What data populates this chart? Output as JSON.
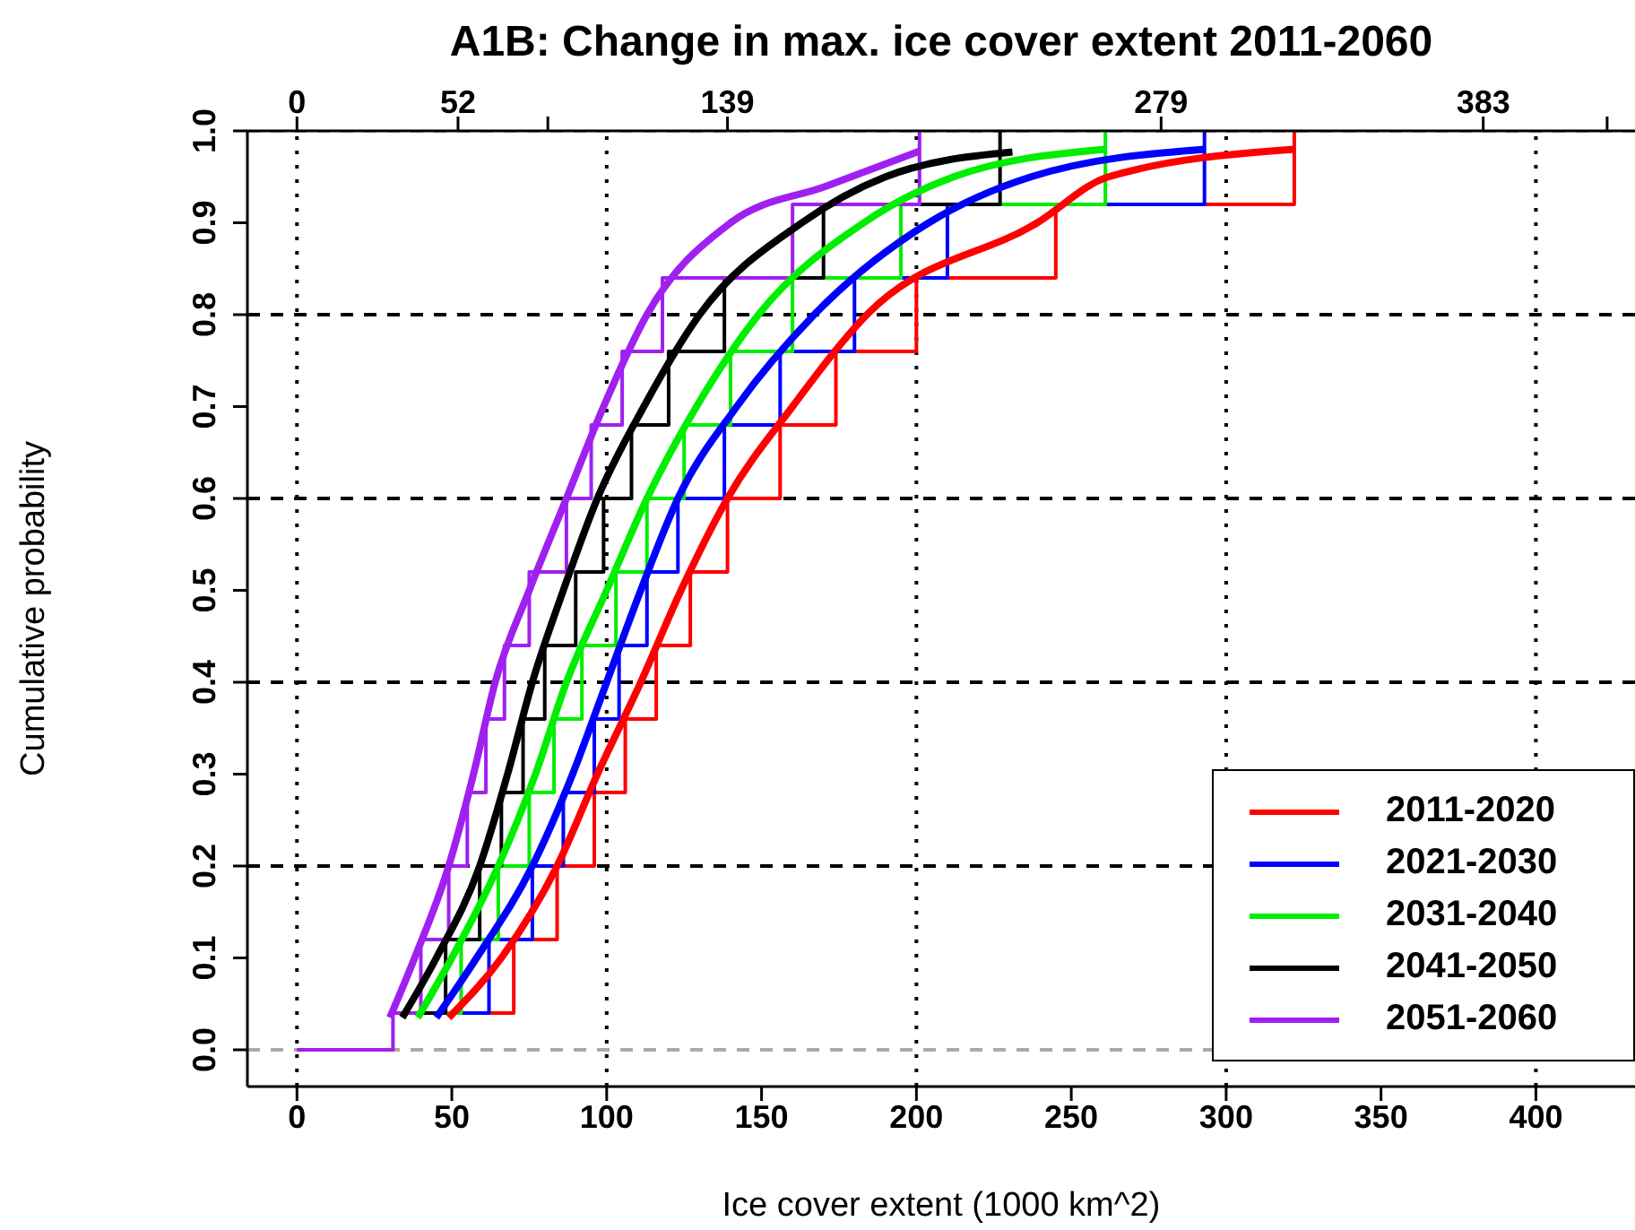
{
  "chart_data": {
    "type": "line",
    "title": "A1B: Change in max. ice cover extent 2011-2060",
    "xlabel": "Ice cover extent (1000 km^2)",
    "ylabel": "Cumulative probability",
    "xlim": [
      -16,
      432
    ],
    "xticks": [
      0,
      50,
      100,
      150,
      200,
      250,
      300,
      350,
      400
    ],
    "x2lim": [
      -16,
      432
    ],
    "x2ticks": [
      0,
      52,
      {
        "value": 81,
        "label": null
      },
      139,
      279,
      383,
      {
        "value": 423,
        "label": null
      }
    ],
    "ylim": [
      -0.04,
      1.0
    ],
    "yticks": [
      {
        "value": 0,
        "label": "0.0"
      },
      0.1,
      0.2,
      0.3,
      0.4,
      0.5,
      0.6,
      0.7,
      0.8,
      0.9,
      {
        "value": 1,
        "label": "1.0"
      }
    ],
    "legend": "bottom right",
    "ref_lines": [
      {
        "axis": "x",
        "value": 0,
        "line_style": "dotted",
        "color": "#000000"
      },
      {
        "axis": "x",
        "value": 100,
        "line_style": "dotted",
        "color": "#000000"
      },
      {
        "axis": "x",
        "value": 200,
        "line_style": "dotted",
        "color": "#000000"
      },
      {
        "axis": "x",
        "value": 300,
        "line_style": "dotted",
        "color": "#000000"
      },
      {
        "axis": "x",
        "value": 400,
        "line_style": "dotted",
        "color": "#000000"
      },
      {
        "axis": "y",
        "value": 0.2,
        "line_style": "dashed",
        "color": "#000000"
      },
      {
        "axis": "y",
        "value": 0.4,
        "line_style": "dashed",
        "color": "#000000"
      },
      {
        "axis": "y",
        "value": 0.6,
        "line_style": "dashed",
        "color": "#000000"
      },
      {
        "axis": "y",
        "value": 0.8,
        "line_style": "dashed",
        "color": "#000000"
      },
      {
        "axis": "y",
        "value": 0,
        "line_style": "dashed",
        "color": "#aaaaaa"
      },
      {
        "axis": "y",
        "value": 1,
        "line_style": "dashed",
        "color": "#aaaaaa"
      }
    ],
    "series": [
      {
        "type": "step",
        "color": "#ff0000",
        "x": [
          52,
          70,
          84,
          96,
          106,
          116,
          127,
          139,
          156,
          174,
          200,
          245,
          322
        ],
        "values": [
          0.04,
          0.12,
          0.2,
          0.28,
          0.36,
          0.44,
          0.52,
          0.6,
          0.68,
          0.76,
          0.84,
          0.92,
          1.0
        ]
      },
      {
        "type": "step",
        "color": "#0000ff",
        "x": [
          46,
          62,
          76,
          86,
          96,
          104,
          113,
          123,
          138,
          156,
          180,
          210,
          293
        ],
        "values": [
          0.04,
          0.12,
          0.2,
          0.28,
          0.36,
          0.44,
          0.52,
          0.6,
          0.68,
          0.76,
          0.84,
          0.92,
          1.0
        ]
      },
      {
        "type": "step",
        "color": "#00ee00",
        "x": [
          40,
          53,
          65,
          75,
          83,
          92,
          103,
          113,
          125,
          140,
          160,
          195,
          261
        ],
        "values": [
          0.04,
          0.12,
          0.2,
          0.28,
          0.36,
          0.44,
          0.52,
          0.6,
          0.68,
          0.76,
          0.84,
          0.92,
          1.0
        ]
      },
      {
        "type": "step",
        "color": "#000000",
        "x": [
          36,
          48,
          59,
          66,
          73,
          80,
          90,
          99,
          108,
          120,
          138,
          170,
          227
        ],
        "values": [
          0.04,
          0.12,
          0.2,
          0.28,
          0.36,
          0.44,
          0.52,
          0.6,
          0.68,
          0.76,
          0.84,
          0.92,
          1.0
        ]
      },
      {
        "type": "step",
        "color": "#a020f0",
        "x": [
          0,
          31,
          40,
          49,
          55,
          61,
          67,
          75,
          87,
          95,
          105,
          118,
          160,
          201
        ],
        "values": [
          0,
          0.04,
          0.12,
          0.2,
          0.28,
          0.36,
          0.44,
          0.52,
          0.6,
          0.68,
          0.76,
          0.84,
          0.92,
          1.0
        ]
      },
      {
        "type": "line",
        "name": "2011-2020",
        "color": "#ff0000",
        "x": [
          49,
          66,
          84,
          97,
          111,
          124,
          139,
          160,
          184,
          239,
          262,
          322
        ],
        "values": [
          0.035,
          0.1,
          0.2,
          0.3,
          0.4,
          0.5,
          0.6,
          0.7,
          0.8,
          0.9,
          0.95,
          0.98
        ]
      },
      {
        "type": "line",
        "name": "2021-2030",
        "color": "#0000ff",
        "x": [
          45,
          58,
          76,
          89,
          100,
          111,
          123,
          142,
          167,
          204,
          237,
          293
        ],
        "values": [
          0.035,
          0.1,
          0.2,
          0.3,
          0.4,
          0.5,
          0.6,
          0.7,
          0.8,
          0.9,
          0.95,
          0.98
        ]
      },
      {
        "type": "line",
        "name": "2031-2040",
        "color": "#00ee00",
        "x": [
          39,
          50,
          65,
          77,
          87,
          100,
          113,
          129,
          149,
          183,
          212,
          261
        ],
        "values": [
          0.035,
          0.1,
          0.2,
          0.3,
          0.4,
          0.5,
          0.6,
          0.7,
          0.8,
          0.9,
          0.95,
          0.98
        ]
      },
      {
        "type": "line",
        "name": "2041-2050",
        "color": "#000000",
        "x": [
          34,
          45,
          59,
          68,
          76,
          86,
          97,
          112,
          130,
          163,
          190,
          231
        ],
        "values": [
          0.035,
          0.1,
          0.2,
          0.3,
          0.4,
          0.5,
          0.6,
          0.7,
          0.8,
          0.9,
          0.95,
          0.977
        ]
      },
      {
        "type": "line",
        "name": "2051-2060",
        "color": "#a020f0",
        "x": [
          30,
          38,
          49,
          57,
          64,
          75,
          87,
          99,
          113,
          140,
          171,
          201
        ],
        "values": [
          0.035,
          0.1,
          0.2,
          0.3,
          0.4,
          0.5,
          0.6,
          0.7,
          0.8,
          0.9,
          0.94,
          0.978
        ]
      }
    ]
  }
}
